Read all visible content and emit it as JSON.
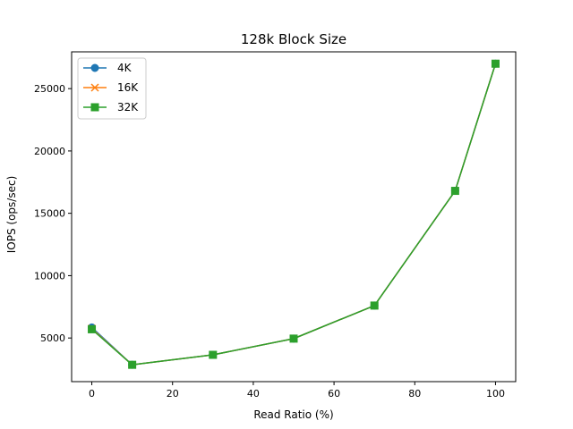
{
  "chart_data": {
    "type": "line",
    "title": "128k Block Size",
    "xlabel": "Read Ratio (%)",
    "ylabel": "IOPS (ops/sec)",
    "x": [
      0,
      10,
      30,
      50,
      70,
      90,
      100
    ],
    "xlim": [
      -5,
      105
    ],
    "ylim": [
      1500,
      27950
    ],
    "xticks": [
      0,
      20,
      40,
      60,
      80,
      100
    ],
    "yticks": [
      5000,
      10000,
      15000,
      20000,
      25000
    ],
    "grid": false,
    "legend_position": "upper-left",
    "series": [
      {
        "name": "4K",
        "color": "#1f77b4",
        "marker": "circle",
        "values": [
          5850,
          2850,
          3650,
          4950,
          7600,
          16800,
          27000
        ]
      },
      {
        "name": "16K",
        "color": "#ff7f0e",
        "marker": "x",
        "values": [
          5750,
          2850,
          3650,
          4950,
          7600,
          16800,
          27000
        ]
      },
      {
        "name": "32K",
        "color": "#2ca02c",
        "marker": "square",
        "values": [
          5700,
          2850,
          3650,
          4950,
          7600,
          16800,
          27000
        ]
      }
    ]
  }
}
